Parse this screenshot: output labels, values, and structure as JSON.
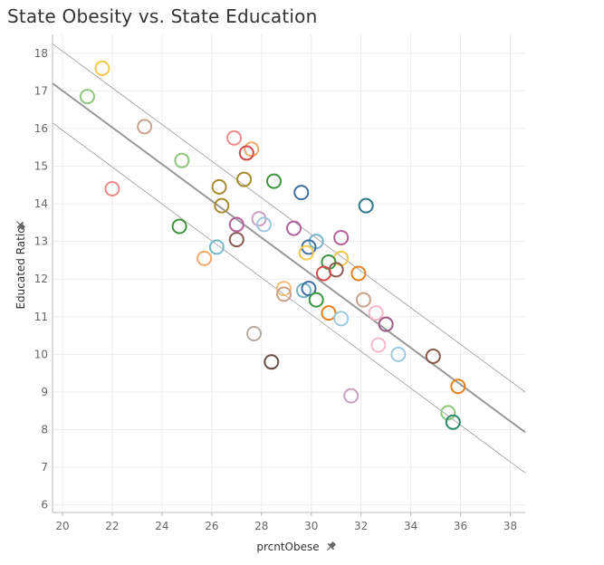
{
  "chart_data": {
    "type": "scatter",
    "title": "State Obesity vs. State Education",
    "xlabel": "prcntObese",
    "ylabel": "Educated Ratio",
    "xlim": [
      19.6,
      38.6
    ],
    "ylim": [
      5.8,
      18.5
    ],
    "xticks": [
      20,
      22,
      24,
      26,
      28,
      30,
      32,
      34,
      36,
      38
    ],
    "yticks": [
      6,
      7,
      8,
      9,
      10,
      11,
      12,
      13,
      14,
      15,
      16,
      17,
      18
    ],
    "grid": true,
    "x_pin_icon": "pin-icon",
    "y_pin_icon": "pin-icon",
    "trend_line": {
      "x": [
        19.6,
        38.6
      ],
      "y": [
        17.2,
        7.93
      ]
    },
    "confidence_upper": {
      "x": [
        19.6,
        38.6
      ],
      "y": [
        18.25,
        9.0
      ]
    },
    "confidence_lower": {
      "x": [
        19.6,
        38.6
      ],
      "y": [
        16.15,
        6.85
      ]
    },
    "trend_color": "#999999",
    "points": [
      {
        "x": 21.6,
        "y": 17.6,
        "color": "#f2c84b"
      },
      {
        "x": 21.0,
        "y": 16.85,
        "color": "#8cc77c"
      },
      {
        "x": 23.3,
        "y": 16.05,
        "color": "#c9a18a"
      },
      {
        "x": 22.0,
        "y": 14.4,
        "color": "#f08a8a"
      },
      {
        "x": 24.8,
        "y": 15.15,
        "color": "#8cc77c"
      },
      {
        "x": 26.9,
        "y": 15.75,
        "color": "#f08a8a"
      },
      {
        "x": 27.6,
        "y": 15.45,
        "color": "#f5a96b"
      },
      {
        "x": 27.4,
        "y": 15.35,
        "color": "#d44a4a"
      },
      {
        "x": 26.3,
        "y": 14.45,
        "color": "#a58c2d"
      },
      {
        "x": 27.3,
        "y": 14.65,
        "color": "#a58c2d"
      },
      {
        "x": 28.5,
        "y": 14.6,
        "color": "#3c9640"
      },
      {
        "x": 29.6,
        "y": 14.3,
        "color": "#3f6fa3"
      },
      {
        "x": 32.2,
        "y": 13.95,
        "color": "#2c7a8c"
      },
      {
        "x": 26.4,
        "y": 13.95,
        "color": "#a58c2d"
      },
      {
        "x": 24.7,
        "y": 13.4,
        "color": "#3c9640"
      },
      {
        "x": 27.0,
        "y": 13.45,
        "color": "#b5609a"
      },
      {
        "x": 27.9,
        "y": 13.6,
        "color": "#c9a0c0"
      },
      {
        "x": 28.1,
        "y": 13.45,
        "color": "#9ecae1"
      },
      {
        "x": 29.3,
        "y": 13.35,
        "color": "#b5609a"
      },
      {
        "x": 31.2,
        "y": 13.1,
        "color": "#b5609a"
      },
      {
        "x": 30.2,
        "y": 13.0,
        "color": "#74b8c8"
      },
      {
        "x": 27.0,
        "y": 13.05,
        "color": "#8c5a4f"
      },
      {
        "x": 26.2,
        "y": 12.85,
        "color": "#74b8c8"
      },
      {
        "x": 25.7,
        "y": 12.55,
        "color": "#f5a96b"
      },
      {
        "x": 29.9,
        "y": 12.85,
        "color": "#3f6fa3"
      },
      {
        "x": 29.8,
        "y": 12.7,
        "color": "#f2c84b"
      },
      {
        "x": 31.2,
        "y": 12.55,
        "color": "#f2c84b"
      },
      {
        "x": 30.7,
        "y": 12.45,
        "color": "#3c9640"
      },
      {
        "x": 31.0,
        "y": 12.25,
        "color": "#8c5a4f"
      },
      {
        "x": 30.5,
        "y": 12.15,
        "color": "#d44a4a"
      },
      {
        "x": 31.9,
        "y": 12.15,
        "color": "#e8801e"
      },
      {
        "x": 28.9,
        "y": 11.75,
        "color": "#f5c07a"
      },
      {
        "x": 28.9,
        "y": 11.6,
        "color": "#c9a18a"
      },
      {
        "x": 29.7,
        "y": 11.7,
        "color": "#74b8c8"
      },
      {
        "x": 29.9,
        "y": 11.75,
        "color": "#3f6fa3"
      },
      {
        "x": 30.2,
        "y": 11.45,
        "color": "#3c9640"
      },
      {
        "x": 32.1,
        "y": 11.45,
        "color": "#c9a18a"
      },
      {
        "x": 30.7,
        "y": 11.1,
        "color": "#e8801e"
      },
      {
        "x": 31.2,
        "y": 10.95,
        "color": "#9ecae1"
      },
      {
        "x": 32.6,
        "y": 11.1,
        "color": "#f5b8c8"
      },
      {
        "x": 33.0,
        "y": 10.8,
        "color": "#9a5a84"
      },
      {
        "x": 27.7,
        "y": 10.55,
        "color": "#b5aca4"
      },
      {
        "x": 32.7,
        "y": 10.25,
        "color": "#f5b8c8"
      },
      {
        "x": 33.5,
        "y": 10.0,
        "color": "#9ecae1"
      },
      {
        "x": 34.9,
        "y": 9.95,
        "color": "#8c5a4f"
      },
      {
        "x": 28.4,
        "y": 9.8,
        "color": "#6b4e48"
      },
      {
        "x": 35.9,
        "y": 9.15,
        "color": "#e8801e"
      },
      {
        "x": 31.6,
        "y": 8.9,
        "color": "#c9a0c0"
      },
      {
        "x": 35.5,
        "y": 8.45,
        "color": "#8cc77c"
      },
      {
        "x": 35.7,
        "y": 8.2,
        "color": "#2c8a6c"
      }
    ]
  }
}
